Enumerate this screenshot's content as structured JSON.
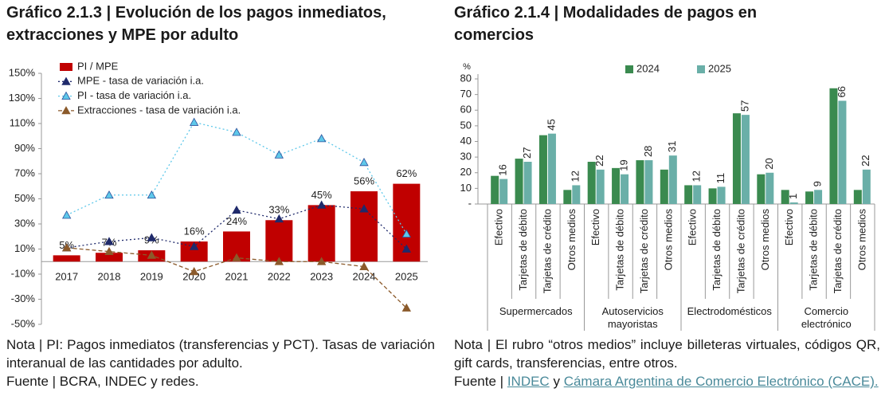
{
  "chart_data": [
    {
      "type": "combo",
      "title": "Gráfico 2.1.3 | Evolución de los pagos inmediatos, extracciones y MPE por adulto",
      "categories": [
        "2017",
        "2018",
        "2019",
        "2020",
        "2021",
        "2022",
        "2023",
        "2024",
        "2025"
      ],
      "series": [
        {
          "name": "PI / MPE",
          "type": "bar",
          "color": "#c00000",
          "values": [
            5,
            7,
            9,
            16,
            24,
            33,
            45,
            56,
            62
          ],
          "value_labels": [
            "5%",
            "7%",
            "9%",
            "16%",
            "24%",
            "33%",
            "45%",
            "56%",
            "62%"
          ]
        },
        {
          "name": "MPE - tasa de variación i.a.",
          "type": "line",
          "line_style": "dotted",
          "color": "#1f2a6b",
          "values": [
            11,
            16,
            19,
            12,
            41,
            34,
            45,
            42,
            10
          ]
        },
        {
          "name": "PI - tasa de variación i.a.",
          "type": "line",
          "line_style": "dotted",
          "color": "#5ec8ea",
          "marker_edge": "#2a4f9a",
          "values": [
            37,
            53,
            53,
            111,
            103,
            85,
            98,
            79,
            22
          ]
        },
        {
          "name": "Extracciones - tasa de variación i.a.",
          "type": "line",
          "line_style": "dashed",
          "color": "#8b5a2b",
          "values": [
            11,
            8,
            5,
            -8,
            3,
            0,
            0,
            -4,
            -37
          ]
        }
      ],
      "ylim": [
        -50,
        150
      ],
      "yticks": [
        {
          "value": -50,
          "label": "-50%"
        },
        {
          "value": -30,
          "label": "-30%"
        },
        {
          "value": -10,
          "label": "-10%"
        },
        {
          "value": 10,
          "label": "10%"
        },
        {
          "value": 30,
          "label": "30%"
        },
        {
          "value": 50,
          "label": "50%"
        },
        {
          "value": 70,
          "label": "70%"
        },
        {
          "value": 90,
          "label": "90%"
        },
        {
          "value": 110,
          "label": "110%"
        },
        {
          "value": 130,
          "label": "130%"
        },
        {
          "value": 150,
          "label": "150%"
        }
      ],
      "legend": "upper left",
      "note": "Nota | PI: Pagos inmediatos (transferencias y PCT). Tasas de variación interanual de las cantidades por adulto.",
      "source": "Fuente | BCRA, INDEC y redes."
    },
    {
      "type": "bar",
      "title": "Gráfico 2.1.4 | Modalidades de pagos en comercios",
      "y_unit": "%",
      "categories": [
        "Efectivo",
        "Tarjetas de débito",
        "Tarjetas de crédito",
        "Otros medios",
        "Efectivo",
        "Tarjetas de débito",
        "Tarjetas de crédito",
        "Otros medios",
        "Efectivo",
        "Tarjetas de débito",
        "Tarjetas de crédito",
        "Otros medios",
        "Efectivo",
        "Tarjetas de débito",
        "Tarjetas de crédito",
        "Otros medios"
      ],
      "groups": [
        "Supermercados",
        "Autoservicios mayoristas",
        "Electrodomésticos",
        "Comercio electrónico"
      ],
      "series": [
        {
          "name": "2024",
          "color": "#3a8a4f",
          "values": [
            18,
            29,
            44,
            9,
            27,
            23,
            28,
            22,
            12,
            10,
            58,
            19,
            9,
            8,
            74,
            9
          ]
        },
        {
          "name": "2025",
          "color": "#6aafa8",
          "data_labels": true,
          "values": [
            16,
            27,
            45,
            12,
            22,
            19,
            28,
            31,
            12,
            11,
            57,
            20,
            1,
            9,
            66,
            22
          ]
        }
      ],
      "ylim": [
        0,
        80
      ],
      "yticks": [
        {
          "value": 0,
          "label": "-"
        },
        10,
        20,
        30,
        40,
        50,
        60,
        70,
        80
      ],
      "legend": "upper center",
      "note": "Nota | El rubro “otros medios” incluye billeteras virtuales, códigos QR, gift cards, transferencias, entre otros.",
      "source": {
        "label": "Fuente |",
        "links": [
          "INDEC",
          "Cámara Argentina de Comercio Electrónico (CACE)."
        ],
        "joiner": "y"
      }
    }
  ]
}
